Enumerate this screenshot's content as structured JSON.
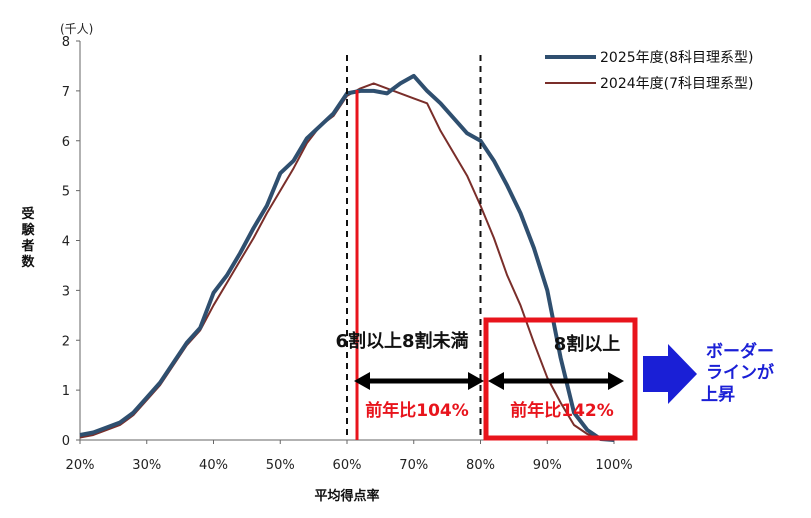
{
  "chart_data": {
    "type": "line",
    "unit_label": "(千人)",
    "ylabel": "受験者数",
    "xlabel": "平均得点率",
    "xlim": [
      20,
      100
    ],
    "ylim": [
      0,
      8
    ],
    "x_ticks": [
      "20%",
      "30%",
      "40%",
      "50%",
      "60%",
      "70%",
      "80%",
      "90%",
      "100%"
    ],
    "y_ticks": [
      "0",
      "1",
      "2",
      "3",
      "4",
      "5",
      "6",
      "7",
      "8"
    ],
    "legend_position": "top-right",
    "series": [
      {
        "name": "2025年度(8科目理系型)",
        "color": "#2f4f6f",
        "points": [
          [
            20,
            0.1
          ],
          [
            22,
            0.15
          ],
          [
            24,
            0.25
          ],
          [
            26,
            0.35
          ],
          [
            28,
            0.55
          ],
          [
            30,
            0.85
          ],
          [
            32,
            1.15
          ],
          [
            34,
            1.55
          ],
          [
            36,
            1.95
          ],
          [
            38,
            2.25
          ],
          [
            40,
            2.95
          ],
          [
            42,
            3.3
          ],
          [
            44,
            3.75
          ],
          [
            46,
            4.25
          ],
          [
            48,
            4.7
          ],
          [
            50,
            5.35
          ],
          [
            52,
            5.6
          ],
          [
            54,
            6.05
          ],
          [
            56,
            6.3
          ],
          [
            58,
            6.55
          ],
          [
            60,
            6.95
          ],
          [
            62,
            7.0
          ],
          [
            64,
            7.0
          ],
          [
            66,
            6.95
          ],
          [
            68,
            7.15
          ],
          [
            70,
            7.3
          ],
          [
            72,
            7.0
          ],
          [
            74,
            6.75
          ],
          [
            76,
            6.45
          ],
          [
            78,
            6.15
          ],
          [
            80,
            6.0
          ],
          [
            82,
            5.6
          ],
          [
            84,
            5.1
          ],
          [
            86,
            4.55
          ],
          [
            88,
            3.85
          ],
          [
            90,
            3.0
          ],
          [
            92,
            1.65
          ],
          [
            94,
            0.55
          ],
          [
            96,
            0.2
          ],
          [
            98,
            0.02
          ],
          [
            100,
            0.0
          ]
        ]
      },
      {
        "name": "2024年度(7科目理系型)",
        "color": "#7a2e2a",
        "points": [
          [
            20,
            0.05
          ],
          [
            22,
            0.1
          ],
          [
            24,
            0.2
          ],
          [
            26,
            0.3
          ],
          [
            28,
            0.5
          ],
          [
            30,
            0.8
          ],
          [
            32,
            1.1
          ],
          [
            34,
            1.5
          ],
          [
            36,
            1.9
          ],
          [
            38,
            2.2
          ],
          [
            40,
            2.7
          ],
          [
            42,
            3.15
          ],
          [
            44,
            3.6
          ],
          [
            46,
            4.05
          ],
          [
            48,
            4.55
          ],
          [
            50,
            5.0
          ],
          [
            52,
            5.45
          ],
          [
            54,
            5.95
          ],
          [
            56,
            6.3
          ],
          [
            58,
            6.5
          ],
          [
            60,
            6.9
          ],
          [
            62,
            7.05
          ],
          [
            64,
            7.15
          ],
          [
            66,
            7.05
          ],
          [
            68,
            6.95
          ],
          [
            70,
            6.85
          ],
          [
            72,
            6.75
          ],
          [
            74,
            6.2
          ],
          [
            76,
            5.75
          ],
          [
            78,
            5.3
          ],
          [
            80,
            4.7
          ],
          [
            82,
            4.05
          ],
          [
            84,
            3.3
          ],
          [
            86,
            2.7
          ],
          [
            88,
            1.95
          ],
          [
            90,
            1.25
          ],
          [
            92,
            0.75
          ],
          [
            94,
            0.3
          ],
          [
            96,
            0.12
          ],
          [
            98,
            0.03
          ],
          [
            100,
            0.0
          ]
        ]
      }
    ],
    "annotations": {
      "band_60_80_label": "6割以上8割未満",
      "band_60_80_change": "前年比104%",
      "band_80_plus_label": "8割以上",
      "band_80_plus_change": "前年比142%",
      "callout": [
        "ボーダー",
        "ラインが",
        "上昇"
      ],
      "vline_red_x": 61.5,
      "dashed_lines_x": [
        60,
        80
      ],
      "red_color": "#e8141c",
      "blue_color": "#1a1fd6"
    }
  }
}
